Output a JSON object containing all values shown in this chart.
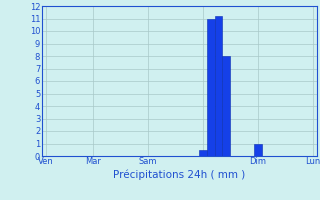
{
  "title": "Précipitations 24h ( mm )",
  "bar_values": [
    0,
    0,
    0,
    0,
    0,
    0,
    0,
    0,
    0,
    0,
    0,
    0,
    0,
    0,
    0,
    0,
    0,
    0,
    0,
    0,
    0.5,
    11,
    11.2,
    8,
    0,
    0,
    0,
    1,
    0,
    0,
    0,
    0,
    0,
    0,
    0
  ],
  "ylim": [
    0,
    12
  ],
  "yticks": [
    0,
    1,
    2,
    3,
    4,
    5,
    6,
    7,
    8,
    9,
    10,
    11,
    12
  ],
  "bar_color": "#1540e8",
  "bar_edge_color": "#0a2eb0",
  "bg_color": "#d0f0f0",
  "grid_color": "#a8c8c8",
  "axis_color": "#2050d0",
  "label_color": "#2050d0",
  "n_bars": 35,
  "tick_positions": [
    0,
    6,
    13,
    20,
    27,
    34
  ],
  "tick_labels": [
    "Ven",
    "Mar",
    "Sam",
    "",
    "Dim",
    "Lun"
  ],
  "figsize": [
    3.2,
    2.0
  ],
  "dpi": 100,
  "title_fontsize": 7.5,
  "tick_fontsize": 6.0
}
